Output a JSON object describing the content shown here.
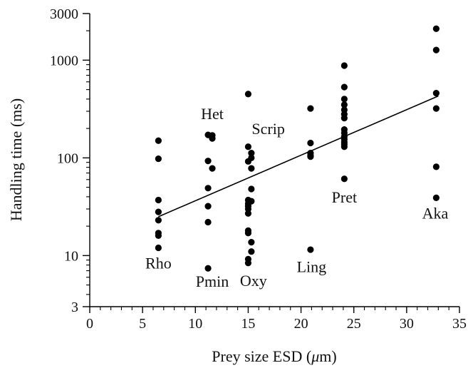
{
  "chart_data": {
    "type": "scatter",
    "title": "",
    "xlabel": "Prey size ESD (",
    "xlabel_unit": "μ",
    "xlabel_suffix": "m)",
    "ylabel": "Handling time (ms)",
    "xlim": [
      0,
      35
    ],
    "ylim": [
      3,
      3000
    ],
    "yscale": "log",
    "grid": false,
    "x_ticks": [
      0,
      5,
      10,
      15,
      20,
      25,
      30,
      35
    ],
    "x_minor_ticks": [
      1,
      2,
      3,
      4,
      6,
      7,
      8,
      9,
      11,
      12,
      13,
      14,
      16,
      17,
      18,
      19,
      21,
      22,
      23,
      24,
      26,
      27,
      28,
      29,
      31,
      32,
      33,
      34
    ],
    "y_ticks": [
      3,
      10,
      100,
      1000,
      3000
    ],
    "y_minor_ticks": [
      4,
      5,
      6,
      7,
      8,
      9,
      20,
      30,
      40,
      50,
      60,
      70,
      80,
      90,
      200,
      300,
      400,
      500,
      600,
      700,
      800,
      900,
      2000
    ],
    "series": [
      {
        "points": [
          {
            "x": 6.5,
            "y": 150
          },
          {
            "x": 6.5,
            "y": 98
          },
          {
            "x": 6.5,
            "y": 37
          },
          {
            "x": 6.5,
            "y": 28
          },
          {
            "x": 6.5,
            "y": 23
          },
          {
            "x": 6.5,
            "y": 17
          },
          {
            "x": 6.5,
            "y": 16
          },
          {
            "x": 6.5,
            "y": 12
          },
          {
            "x": 11.2,
            "y": 172
          },
          {
            "x": 11.6,
            "y": 170
          },
          {
            "x": 11.6,
            "y": 158
          },
          {
            "x": 11.2,
            "y": 93
          },
          {
            "x": 11.6,
            "y": 78
          },
          {
            "x": 11.2,
            "y": 49
          },
          {
            "x": 11.2,
            "y": 32
          },
          {
            "x": 11.2,
            "y": 22
          },
          {
            "x": 11.2,
            "y": 7.4
          },
          {
            "x": 15.0,
            "y": 450
          },
          {
            "x": 15.0,
            "y": 130
          },
          {
            "x": 15.3,
            "y": 112
          },
          {
            "x": 15.3,
            "y": 100
          },
          {
            "x": 15.0,
            "y": 92
          },
          {
            "x": 15.3,
            "y": 78
          },
          {
            "x": 15.3,
            "y": 48
          },
          {
            "x": 15.0,
            "y": 37
          },
          {
            "x": 15.3,
            "y": 36
          },
          {
            "x": 15.0,
            "y": 34
          },
          {
            "x": 15.0,
            "y": 32
          },
          {
            "x": 15.0,
            "y": 30
          },
          {
            "x": 15.0,
            "y": 27
          },
          {
            "x": 15.0,
            "y": 18
          },
          {
            "x": 15.0,
            "y": 17
          },
          {
            "x": 15.3,
            "y": 13.7
          },
          {
            "x": 15.3,
            "y": 11
          },
          {
            "x": 15.0,
            "y": 9.2
          },
          {
            "x": 15.0,
            "y": 8.4
          },
          {
            "x": 20.9,
            "y": 320
          },
          {
            "x": 20.9,
            "y": 142
          },
          {
            "x": 20.9,
            "y": 112
          },
          {
            "x": 20.9,
            "y": 106
          },
          {
            "x": 20.9,
            "y": 103
          },
          {
            "x": 20.9,
            "y": 11.5
          },
          {
            "x": 24.1,
            "y": 880
          },
          {
            "x": 24.1,
            "y": 530
          },
          {
            "x": 24.1,
            "y": 400
          },
          {
            "x": 24.1,
            "y": 350
          },
          {
            "x": 24.1,
            "y": 310
          },
          {
            "x": 24.1,
            "y": 280
          },
          {
            "x": 24.1,
            "y": 255
          },
          {
            "x": 24.1,
            "y": 195
          },
          {
            "x": 24.1,
            "y": 180
          },
          {
            "x": 24.1,
            "y": 165
          },
          {
            "x": 24.1,
            "y": 155
          },
          {
            "x": 24.1,
            "y": 145
          },
          {
            "x": 24.1,
            "y": 138
          },
          {
            "x": 24.1,
            "y": 130
          },
          {
            "x": 24.1,
            "y": 61
          },
          {
            "x": 32.8,
            "y": 2100
          },
          {
            "x": 32.8,
            "y": 1270
          },
          {
            "x": 32.8,
            "y": 460
          },
          {
            "x": 32.8,
            "y": 320
          },
          {
            "x": 32.8,
            "y": 81
          },
          {
            "x": 32.8,
            "y": 39
          }
        ]
      }
    ],
    "fit_line": {
      "x": [
        6.5,
        33.0
      ],
      "y": [
        25,
        430
      ]
    },
    "annotations": [
      {
        "text": "Rho",
        "x": 6.5,
        "y": 7.4
      },
      {
        "text": "Het",
        "x": 11.6,
        "y": 250
      },
      {
        "text": "Pmin",
        "x": 11.6,
        "y": 4.8
      },
      {
        "text": "Oxy",
        "x": 15.5,
        "y": 4.9
      },
      {
        "text": "Scrip",
        "x": 16.9,
        "y": 175
      },
      {
        "text": "Ling",
        "x": 21.0,
        "y": 6.8
      },
      {
        "text": "Pret",
        "x": 24.1,
        "y": 35
      },
      {
        "text": "Aka",
        "x": 32.7,
        "y": 24
      }
    ]
  }
}
